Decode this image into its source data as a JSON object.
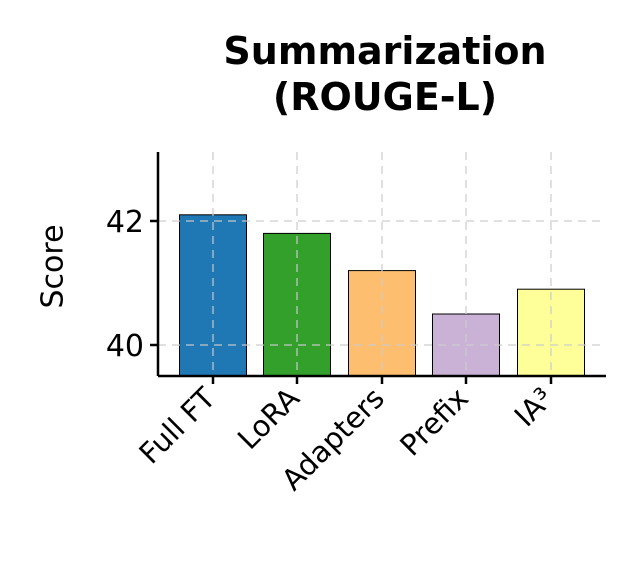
{
  "chart_data": {
    "type": "bar",
    "title": "Summarization\n(ROUGE-L)",
    "title_lines": [
      "Summarization",
      "(ROUGE-L)"
    ],
    "xlabel": "",
    "ylabel": "Score",
    "categories": [
      "Full FT",
      "LoRA",
      "Adapters",
      "Prefix",
      "IA³"
    ],
    "values": [
      42.1,
      41.8,
      41.2,
      40.5,
      40.9
    ],
    "colors": [
      "#1f77b4",
      "#33a02c",
      "#fdbf6f",
      "#cab2d6",
      "#ffff99"
    ],
    "yticks": [
      40,
      42
    ],
    "ylim": [
      39.5,
      43.1
    ],
    "grid": true,
    "legend": null
  }
}
